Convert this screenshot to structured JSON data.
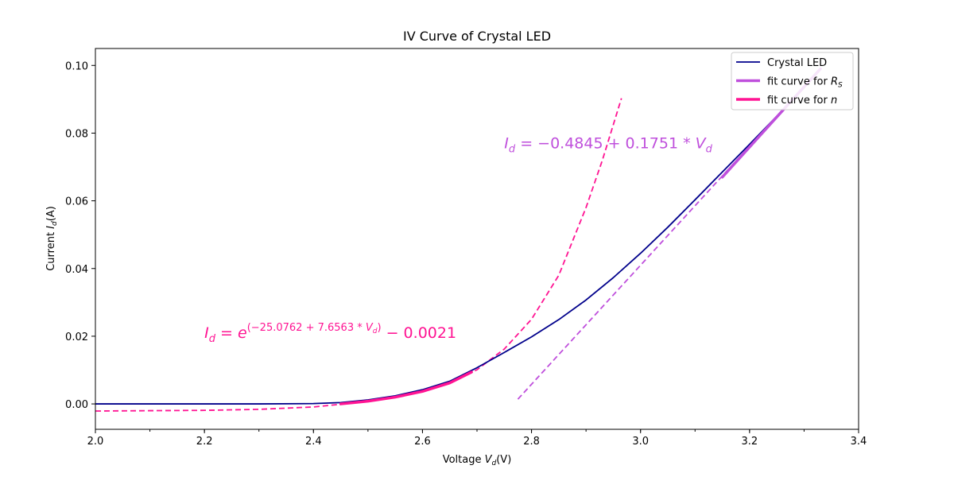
{
  "chart_data": {
    "type": "line",
    "title": "IV Curve of Crystal LED",
    "xlabel": "Voltage V_d(V)",
    "ylabel": "Current I_d(A)",
    "xlim": [
      2.0,
      3.4
    ],
    "ylim": [
      -0.0075,
      0.105
    ],
    "x_ticks": [
      "2.0",
      "2.2",
      "2.4",
      "2.6",
      "2.8",
      "3.0",
      "3.2",
      "3.4"
    ],
    "y_ticks": [
      "0.00",
      "0.02",
      "0.04",
      "0.06",
      "0.08",
      "0.10"
    ],
    "x_minor_step": 0.1,
    "grid": false,
    "legend_position": "top-right",
    "series": [
      {
        "name": "Crystal LED",
        "color": "#00008b",
        "style": "solid",
        "x": [
          2.0,
          2.1,
          2.2,
          2.3,
          2.4,
          2.45,
          2.5,
          2.55,
          2.6,
          2.65,
          2.7,
          2.75,
          2.8,
          2.85,
          2.9,
          2.95,
          3.0,
          3.05,
          3.1,
          3.15,
          3.2,
          3.25,
          3.3,
          3.33
        ],
        "y": [
          0.0,
          0.0,
          0.0,
          0.0,
          0.0001,
          0.0004,
          0.0012,
          0.0024,
          0.0042,
          0.0067,
          0.0107,
          0.0152,
          0.0198,
          0.0249,
          0.0307,
          0.0373,
          0.0445,
          0.0522,
          0.0603,
          0.0685,
          0.0767,
          0.085,
          0.0935,
          0.099
        ]
      },
      {
        "name": "fit curve for R_S",
        "color": "#bf4fdc",
        "style": "solid",
        "x": [
          3.15,
          3.33
        ],
        "y": [
          0.067,
          0.099
        ]
      },
      {
        "name": "fit curve for n",
        "color": "#ff1493",
        "style": "solid",
        "x": [
          2.45,
          2.5,
          2.55,
          2.6,
          2.65,
          2.69
        ],
        "y": [
          0.0,
          0.0008,
          0.002,
          0.0037,
          0.0062,
          0.0094
        ]
      }
    ],
    "extrapolations": [
      {
        "of": "fit curve for R_S",
        "color": "#bf4fdc",
        "style": "dashed",
        "x": [
          2.775,
          3.33
        ],
        "y": [
          0.0014,
          0.099
        ]
      },
      {
        "of": "fit curve for n",
        "color": "#ff1493",
        "style": "dashed",
        "x": [
          2.0,
          2.1,
          2.2,
          2.3,
          2.4,
          2.45,
          2.5,
          2.55,
          2.6,
          2.65,
          2.7,
          2.75,
          2.8,
          2.85,
          2.9,
          2.93,
          2.965
        ],
        "y": [
          -0.0021,
          -0.002,
          -0.0019,
          -0.0016,
          -0.0009,
          -0.0001,
          0.0008,
          0.002,
          0.0037,
          0.0062,
          0.0101,
          0.0162,
          0.025,
          0.038,
          0.058,
          0.072,
          0.0903
        ]
      }
    ],
    "annotations": [
      {
        "text": "I_d = −0.4845 + 0.1751 * V_d",
        "color": "#bf4fdc",
        "x": 2.75,
        "y": 0.0755
      },
      {
        "text": "I_d = e^(−25.0762 + 7.6563 * V_d) − 0.0021",
        "color": "#ff1493",
        "x": 2.2,
        "y": 0.0195
      }
    ]
  }
}
